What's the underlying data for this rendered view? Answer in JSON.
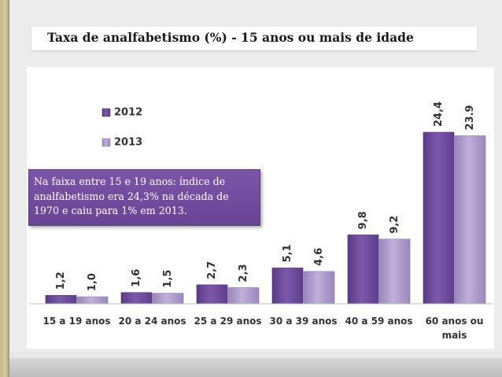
{
  "slide": {
    "title": "Taxa de analfabetismo (%) - 15 anos ou mais de idade",
    "annotation": "Na faixa entre 15 e 19 anos: índice de analfabetismo era 24,3% na década de 1970 e caiu para 1% em 2013."
  },
  "colors": {
    "series_2012": "#6d4a9b",
    "series_2013": "#a893c7"
  },
  "chart_data": {
    "type": "bar",
    "title": "Taxa de analfabetismo (%) - 15 anos ou mais de idade",
    "xlabel": "",
    "ylabel": "",
    "ylim": [
      0,
      25
    ],
    "grid": false,
    "legend_position": "top-left",
    "categories": [
      "15 a 19 anos",
      "20 a 24 anos",
      "25 a 29 anos",
      "30 a 39 anos",
      "40 a 59 anos",
      "60 anos ou mais"
    ],
    "series": [
      {
        "name": "2012",
        "values": [
          1.2,
          1.6,
          2.7,
          5.1,
          9.8,
          24.4
        ],
        "labels": [
          "1,2",
          "1,6",
          "2,7",
          "5,1",
          "9,8",
          "24,4"
        ]
      },
      {
        "name": "2013",
        "values": [
          1.0,
          1.5,
          2.3,
          4.6,
          9.2,
          23.9
        ],
        "labels": [
          "1,0",
          "1,5",
          "2,3",
          "4,6",
          "9,2",
          "23.9"
        ]
      }
    ]
  }
}
